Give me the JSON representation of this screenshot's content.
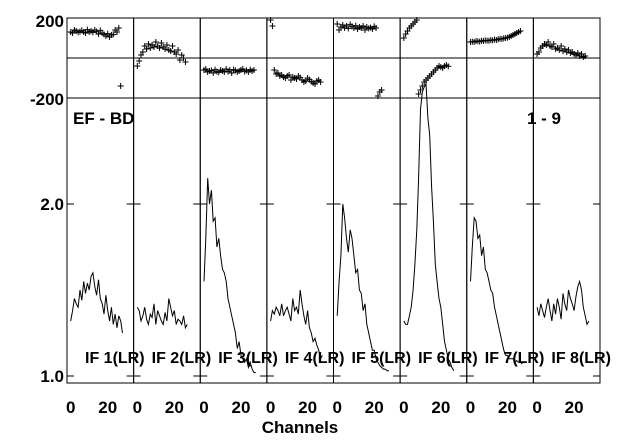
{
  "chart_data": {
    "type": "line",
    "annotation_left": "EF - BD",
    "annotation_right": "1 - 9",
    "xlabel": "Channels",
    "phase_axis": {
      "ticks": [
        "200",
        "-200"
      ],
      "range": [
        -200,
        200
      ]
    },
    "amp_axis": {
      "ticks": [
        "2.0",
        "1.0"
      ],
      "range": [
        0.95,
        2.75
      ]
    },
    "panel_xticks": [
      "0",
      "20"
    ],
    "x_range": [
      -2,
      34
    ],
    "panels": [
      {
        "label": "IF 1(LR)",
        "amplitude": [
          1.32,
          1.38,
          1.45,
          1.42,
          1.4,
          1.5,
          1.44,
          1.55,
          1.48,
          1.54,
          1.5,
          1.58,
          1.6,
          1.52,
          1.47,
          1.56,
          1.45,
          1.42,
          1.36,
          1.47,
          1.38,
          1.32,
          1.4,
          1.3,
          1.36,
          1.28,
          1.35,
          1.32,
          1.25
        ],
        "phase": [
          130,
          125,
          140,
          135,
          128,
          132,
          138,
          130,
          125,
          142,
          130,
          135,
          128,
          140,
          132,
          120,
          138,
          125,
          118,
          110,
          122,
          105,
          115,
          118,
          140,
          130,
          150,
          -140
        ]
      },
      {
        "label": "IF 2(LR)",
        "amplitude": [
          1.4,
          1.38,
          1.32,
          1.35,
          1.4,
          1.33,
          1.3,
          1.36,
          1.34,
          1.42,
          1.3,
          1.38,
          1.35,
          1.32,
          1.3,
          1.37,
          1.32,
          1.45,
          1.4,
          1.35,
          1.38,
          1.3,
          1.33,
          1.32,
          1.3,
          1.35,
          1.28,
          1.3
        ],
        "phase": [
          -40,
          -15,
          15,
          30,
          60,
          45,
          70,
          50,
          65,
          55,
          80,
          60,
          50,
          75,
          55,
          45,
          65,
          40,
          35,
          60,
          30,
          20,
          40,
          -10,
          15,
          0,
          -20
        ]
      },
      {
        "label": "IF 3(LR)",
        "amplitude": [
          1.55,
          1.8,
          2.15,
          2.0,
          2.08,
          1.9,
          1.92,
          1.75,
          1.8,
          1.7,
          1.62,
          1.6,
          1.55,
          1.45,
          1.4,
          1.35,
          1.3,
          1.25,
          1.16,
          1.2,
          1.12,
          1.1,
          1.08,
          1.1,
          1.05,
          1.08,
          1.04,
          1.02,
          1.02
        ],
        "phase": [
          -60,
          -55,
          -70,
          -65,
          -62,
          -75,
          -58,
          -68,
          -72,
          -60,
          -65,
          -70,
          -55,
          -68,
          -60,
          -75,
          -58,
          -62,
          -70,
          -65,
          -60,
          -55,
          -68,
          -62,
          -70,
          -58,
          -65,
          -60
        ]
      },
      {
        "label": "IF 4(LR)",
        "amplitude": [
          1.32,
          1.38,
          1.36,
          1.4,
          1.38,
          1.35,
          1.42,
          1.35,
          1.38,
          1.4,
          1.36,
          1.32,
          1.45,
          1.38,
          1.4,
          1.36,
          1.5,
          1.42,
          1.35,
          1.3,
          1.38,
          1.28,
          1.25,
          1.2,
          1.22,
          1.18,
          1.15,
          1.1,
          1.12
        ],
        "phase": [
          190,
          160,
          -60,
          -80,
          -75,
          -90,
          -85,
          -95,
          -100,
          -90,
          -85,
          -110,
          -95,
          -100,
          -105,
          -90,
          -98,
          -110,
          -120,
          -115,
          -100,
          -108,
          -118,
          -125,
          -130,
          -115,
          -110,
          -120
        ]
      },
      {
        "label": "IF 5(LR)",
        "amplitude": [
          1.35,
          1.55,
          1.7,
          2.0,
          1.92,
          1.8,
          1.72,
          1.85,
          1.8,
          1.7,
          1.6,
          1.62,
          1.5,
          1.48,
          1.38,
          1.42,
          1.3,
          1.25,
          1.2,
          1.15,
          1.15,
          1.1,
          1.08,
          1.06,
          1.05,
          1.04,
          1.04,
          1.03,
          1.03
        ],
        "phase": [
          170,
          140,
          155,
          165,
          150,
          160,
          148,
          168,
          158,
          150,
          162,
          145,
          155,
          150,
          160,
          140,
          155,
          148,
          152,
          145,
          158,
          150,
          -190,
          -170,
          -160
        ]
      },
      {
        "label": "IF 6(LR)",
        "amplitude": [
          1.32,
          1.3,
          1.3,
          1.35,
          1.4,
          1.5,
          1.65,
          1.85,
          2.15,
          2.55,
          2.65,
          2.68,
          2.7,
          2.5,
          2.4,
          2.1,
          1.9,
          1.65,
          1.55,
          1.45,
          1.4,
          1.3,
          1.2,
          1.15,
          1.1,
          1.08,
          1.05,
          1.03
        ],
        "phase": [
          100,
          120,
          135,
          150,
          160,
          170,
          180,
          190,
          -180,
          -160,
          -140,
          -120,
          -110,
          -100,
          -90,
          -80,
          -70,
          -60,
          -50,
          -40,
          -45,
          -50,
          -40,
          -35,
          -42
        ]
      },
      {
        "label": "IF 7(LR)",
        "amplitude": [
          1.55,
          1.75,
          1.92,
          1.9,
          1.8,
          1.82,
          1.7,
          1.75,
          1.62,
          1.6,
          1.55,
          1.5,
          1.48,
          1.4,
          1.35,
          1.3,
          1.25,
          1.2,
          1.15,
          1.12,
          1.12,
          1.1,
          1.1,
          1.1,
          1.08,
          1.09,
          1.08,
          1.08,
          1.07
        ],
        "phase": [
          80,
          82,
          80,
          85,
          84,
          82,
          86,
          85,
          88,
          87,
          86,
          90,
          88,
          92,
          90,
          94,
          96,
          95,
          98,
          100,
          102,
          105,
          110,
          115,
          120,
          125,
          130,
          135
        ]
      },
      {
        "label": "IF 8(LR)",
        "amplitude": [
          1.4,
          1.35,
          1.42,
          1.38,
          1.34,
          1.4,
          1.45,
          1.38,
          1.32,
          1.42,
          1.36,
          1.45,
          1.4,
          1.33,
          1.48,
          1.42,
          1.38,
          1.5,
          1.45,
          1.42,
          1.38,
          1.46,
          1.52,
          1.55,
          1.5,
          1.4,
          1.35,
          1.3,
          1.32
        ],
        "phase": [
          20,
          30,
          50,
          60,
          70,
          65,
          80,
          60,
          55,
          70,
          45,
          50,
          40,
          60,
          35,
          45,
          30,
          40,
          25,
          30,
          20,
          15,
          25,
          10,
          20,
          5,
          10
        ]
      }
    ]
  }
}
